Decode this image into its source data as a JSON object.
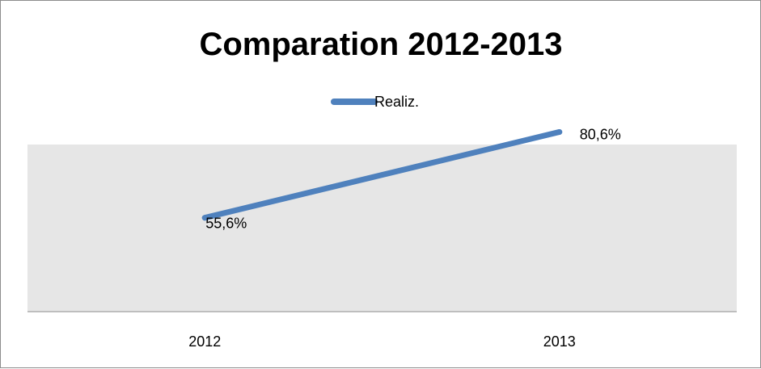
{
  "chart_data": {
    "type": "line",
    "title": "Comparation 2012-2013",
    "categories": [
      "2012",
      "2013"
    ],
    "series": [
      {
        "name": "Realiz.",
        "values": [
          55.6,
          80.6
        ],
        "labels": [
          "55,6%",
          "80,6%"
        ]
      }
    ],
    "xlabel": "",
    "ylabel": "",
    "ylim": [
      0,
      100
    ],
    "legend": "top-center",
    "grid": false,
    "colors": {
      "series": "#4f81bd",
      "plot_background": "#e6e6e6",
      "axis": "#8c8c8c"
    }
  }
}
